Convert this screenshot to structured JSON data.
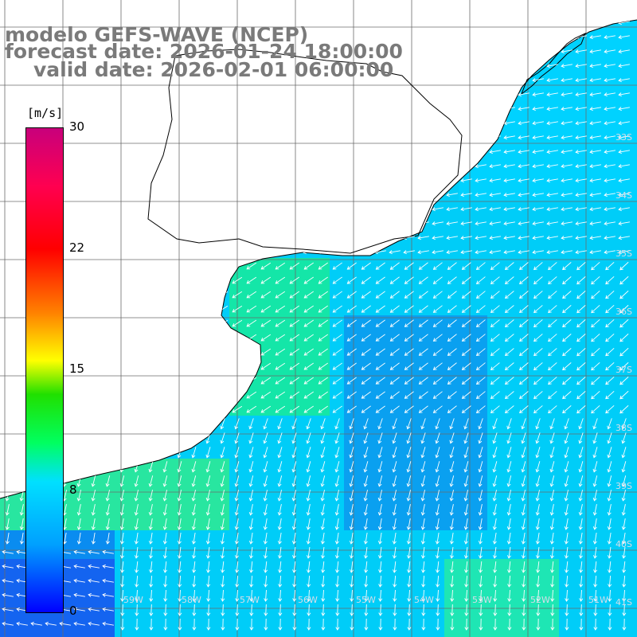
{
  "title": {
    "line1": "modelo GEFS-WAVE (NCEP)",
    "line2": "forecast date: 2026-01-24 18:00:00",
    "line3": "valid date: 2026-02-01 06:00:00"
  },
  "colorbar": {
    "unit": "[m/s]",
    "ticks": [
      "30",
      "22",
      "15",
      "8",
      "0"
    ],
    "min": 0,
    "max": 30
  },
  "lat_labels": [
    "33S",
    "34S",
    "35S",
    "36S",
    "37S",
    "38S",
    "39S",
    "40S",
    "41S"
  ],
  "lon_labels": [
    "59W",
    "58W",
    "57W",
    "56W",
    "55W",
    "54W",
    "53W",
    "52W",
    "51W"
  ],
  "colors": {
    "land": "#ffffff",
    "coast": "#000000",
    "grid": "#6b6b6b",
    "title": "#7a7a7a",
    "arrow": "#ffffff"
  },
  "field": {
    "quantity": "wind speed",
    "description_units": "m/s"
  }
}
